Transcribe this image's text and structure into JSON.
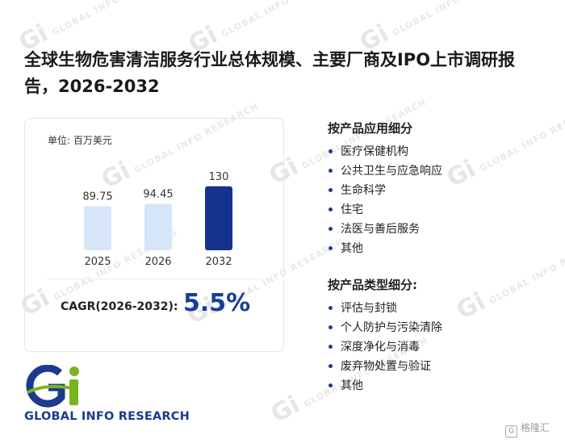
{
  "title": "全球生物危害清洁服务行业总体规模、主要厂商及IPO上市调研报告，2026-2032",
  "unit_label": "单位: 百万美元",
  "chart_data": {
    "type": "bar",
    "categories": [
      "2025",
      "2026",
      "2032"
    ],
    "values": [
      89.75,
      94.45,
      130
    ],
    "value_labels": [
      "89.75",
      "94.45",
      "130"
    ],
    "bar_colors": [
      "#d6e6f8",
      "#d6e6f8",
      "#15328c"
    ],
    "ylim": [
      0,
      140
    ]
  },
  "cagr": {
    "label": "CAGR(2026-2032):",
    "value": "5.5%"
  },
  "application_section": {
    "heading": "按产品应用细分",
    "items": [
      "医疗保健机构",
      "公共卫生与应急响应",
      "生命科学",
      "住宅",
      "法医与善后服务",
      "其他"
    ]
  },
  "type_section": {
    "heading": "按产品类型细分:",
    "items": [
      "评估与封锁",
      "个人防护与污染清除",
      "深度净化与消毒",
      "废弃物处置与验证",
      "其他"
    ]
  },
  "logo": {
    "text": "GLOBAL INFO RESEARCH",
    "icon": "gi-logo-icon",
    "green": "#7ab51d",
    "blue": "#1c3a8f"
  },
  "watermark": {
    "text": "GLOBAL INFO RESEARCH",
    "mark": "Gi"
  },
  "corner_brand": {
    "text": "格隆汇",
    "icon": "gelonghui-icon"
  }
}
